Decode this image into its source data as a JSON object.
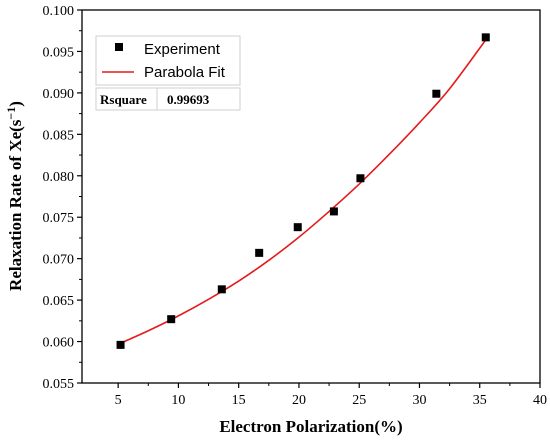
{
  "chart_data": {
    "type": "scatter",
    "xlabel": "Electron Polarization(%)",
    "ylabel_main": "Relaxation Rate of Xe(s",
    "ylabel_sup": "−1",
    "ylabel_close": ")",
    "xlim": [
      2,
      40
    ],
    "ylim": [
      0.055,
      0.1
    ],
    "xticks": [
      5,
      10,
      15,
      20,
      25,
      30,
      35,
      40
    ],
    "yticks": [
      0.055,
      0.06,
      0.065,
      0.07,
      0.075,
      0.08,
      0.085,
      0.09,
      0.095,
      0.1
    ],
    "grid": false,
    "legend_position": "top-left",
    "series": [
      {
        "name": "Experiment",
        "kind": "scatter",
        "marker": "square",
        "color": "#000000",
        "x": [
          5.2,
          9.4,
          13.6,
          16.7,
          19.9,
          22.9,
          25.1,
          31.4,
          35.5
        ],
        "y": [
          0.0596,
          0.0627,
          0.0663,
          0.0707,
          0.0738,
          0.0757,
          0.0797,
          0.0899,
          0.0967
        ]
      },
      {
        "name": "Parabola Fit",
        "kind": "line",
        "color": "#e41a1c",
        "x": [
          5.2,
          7.5,
          10.0,
          12.5,
          15.0,
          17.5,
          20.0,
          22.5,
          25.0,
          27.5,
          30.0,
          32.5,
          35.5
        ],
        "y": [
          0.0598,
          0.0613,
          0.0631,
          0.0651,
          0.0673,
          0.0698,
          0.0726,
          0.0757,
          0.079,
          0.0826,
          0.0864,
          0.0905,
          0.0964
        ]
      }
    ],
    "stats_table": {
      "label": "Rsquare",
      "value": "0.99693"
    }
  }
}
